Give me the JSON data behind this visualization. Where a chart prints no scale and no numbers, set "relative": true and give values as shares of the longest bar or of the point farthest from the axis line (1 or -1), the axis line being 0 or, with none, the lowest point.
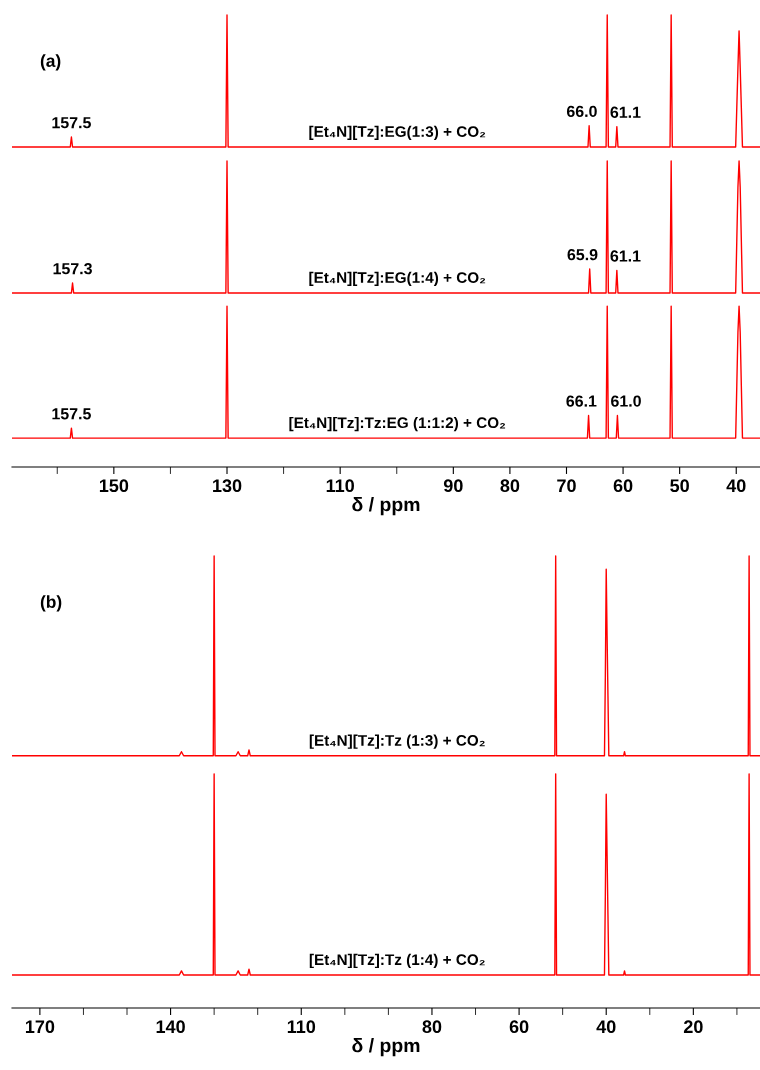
{
  "chart_data": [
    {
      "type": "line",
      "relative": true,
      "tick_labels": "x",
      "xlim": [
        168.0,
        35.8
      ],
      "xlabel": "δ / ppm",
      "xticks": [
        {
          "value": 160,
          "label": null
        },
        150,
        {
          "value": 140,
          "label": null
        },
        130,
        {
          "value": 120,
          "label": null
        },
        110,
        {
          "value": 100,
          "label": null
        },
        90,
        80,
        70,
        60,
        50,
        40
      ],
      "annotations": [
        "(a)",
        {
          "text": "157.5",
          "x": 157.5,
          "y": 0.73
        },
        {
          "text": "66.0",
          "x": 66.0,
          "y": 0.755
        },
        {
          "text": "61.1",
          "x": 61.1,
          "y": 0.753
        },
        {
          "text": "157.3",
          "x": 157.3,
          "y": 0.407
        },
        {
          "text": "65.9",
          "x": 65.9,
          "y": 0.438
        },
        {
          "text": "61.1",
          "x": 61.1,
          "y": 0.435
        },
        {
          "text": "157.5",
          "x": 157.5,
          "y": 0.086
        },
        {
          "text": "66.1",
          "x": 66.1,
          "y": 0.114
        },
        {
          "text": "61.0",
          "x": 61.0,
          "y": 0.114
        }
      ],
      "series": [
        {
          "name": "[Et₄N][Tz]:EG(1:3) + CO₂",
          "color": "#ff0000",
          "x": [
            168.0,
            157.7,
            157.5,
            157.3,
            130.2,
            130.0,
            129.8,
            66.2,
            66.0,
            65.8,
            63.0,
            62.8,
            62.6,
            61.3,
            61.1,
            60.9,
            51.7,
            51.5,
            51.3,
            40.1,
            39.9,
            39.7,
            39.5,
            39.3,
            39.1,
            38.9,
            35.8
          ],
          "values": [
            0.708,
            0.708,
            0.73,
            0.708,
            0.708,
            1.0,
            0.708,
            0.708,
            0.755,
            0.708,
            0.708,
            1.0,
            0.708,
            0.708,
            0.753,
            0.708,
            0.708,
            1.0,
            0.708,
            0.708,
            0.796,
            0.883,
            0.965,
            0.883,
            0.796,
            0.708,
            0.708
          ]
        },
        {
          "name": "[Et₄N][Tz]:EG(1:4) + CO₂",
          "color": "#ff0000",
          "x": [
            168.0,
            157.5,
            157.3,
            157.1,
            130.2,
            130.0,
            129.8,
            66.1,
            65.9,
            65.7,
            63.0,
            62.8,
            62.6,
            61.3,
            61.1,
            60.9,
            51.7,
            51.5,
            51.3,
            40.1,
            39.9,
            39.7,
            39.5,
            39.3,
            39.1,
            38.9,
            35.8
          ],
          "values": [
            0.385,
            0.385,
            0.407,
            0.385,
            0.385,
            0.677,
            0.385,
            0.385,
            0.438,
            0.385,
            0.385,
            0.677,
            0.385,
            0.385,
            0.435,
            0.385,
            0.385,
            0.677,
            0.385,
            0.385,
            0.502,
            0.619,
            0.677,
            0.619,
            0.502,
            0.385,
            0.385
          ]
        },
        {
          "name": "[Et₄N][Tz]:Tz:EG (1:1:2) + CO₂",
          "color": "#ff0000",
          "x": [
            168.0,
            157.7,
            157.5,
            157.3,
            130.2,
            130.0,
            129.8,
            66.3,
            66.1,
            65.9,
            63.0,
            62.8,
            62.6,
            61.2,
            61.0,
            60.8,
            51.7,
            51.5,
            51.3,
            40.1,
            39.9,
            39.7,
            39.5,
            39.3,
            39.1,
            38.9,
            35.8
          ],
          "values": [
            0.064,
            0.064,
            0.086,
            0.064,
            0.064,
            0.356,
            0.064,
            0.064,
            0.114,
            0.064,
            0.064,
            0.356,
            0.064,
            0.064,
            0.114,
            0.064,
            0.064,
            0.356,
            0.064,
            0.064,
            0.181,
            0.298,
            0.356,
            0.298,
            0.181,
            0.064,
            0.064
          ]
        }
      ]
    },
    {
      "type": "line",
      "relative": true,
      "tick_labels": "x",
      "xlim": [
        176.4,
        4.7
      ],
      "xlabel": "δ / ppm",
      "xticks": [
        170,
        {
          "value": 160,
          "label": null
        },
        {
          "value": 150,
          "label": null
        },
        140,
        {
          "value": 130,
          "label": null
        },
        {
          "value": 120,
          "label": null
        },
        110,
        {
          "value": 100,
          "label": null
        },
        {
          "value": 90,
          "label": null
        },
        80,
        {
          "value": 70,
          "label": null
        },
        60,
        {
          "value": 50,
          "label": null
        },
        40,
        {
          "value": 30,
          "label": null
        },
        20,
        {
          "value": 10,
          "label": null
        }
      ],
      "annotations": [
        "(b)"
      ],
      "series": [
        {
          "name": "[Et₄N][Tz]:Tz (1:3) + CO₂",
          "color": "#ff0000",
          "x": [
            176.4,
            138.0,
            137.5,
            137.0,
            130.2,
            130.0,
            129.8,
            125.0,
            124.5,
            124.0,
            122.3,
            122.0,
            121.7,
            51.8,
            51.6,
            51.4,
            40.4,
            40.2,
            40.0,
            39.8,
            39.6,
            39.4,
            36.0,
            35.8,
            35.6,
            7.4,
            7.2,
            7.0,
            4.7
          ],
          "values": [
            0.558,
            0.558,
            0.567,
            0.558,
            0.558,
            1.0,
            0.558,
            0.558,
            0.567,
            0.558,
            0.558,
            0.571,
            0.558,
            0.558,
            1.0,
            0.558,
            0.558,
            0.735,
            0.971,
            0.823,
            0.691,
            0.558,
            0.558,
            0.567,
            0.558,
            0.558,
            1.0,
            0.558,
            0.558
          ]
        },
        {
          "name": "[Et₄N][Tz]:Tz (1:4) + CO₂",
          "color": "#ff0000",
          "x": [
            176.4,
            138.0,
            137.5,
            137.0,
            130.2,
            130.0,
            129.8,
            125.0,
            124.5,
            124.0,
            122.3,
            122.0,
            121.7,
            51.8,
            51.6,
            51.4,
            40.4,
            40.2,
            40.0,
            39.8,
            39.6,
            39.4,
            36.0,
            35.8,
            35.6,
            7.4,
            7.2,
            7.0,
            4.7
          ],
          "values": [
            0.073,
            0.073,
            0.082,
            0.073,
            0.073,
            0.518,
            0.073,
            0.073,
            0.082,
            0.073,
            0.073,
            0.086,
            0.073,
            0.073,
            0.518,
            0.073,
            0.073,
            0.251,
            0.473,
            0.338,
            0.206,
            0.073,
            0.073,
            0.082,
            0.073,
            0.073,
            0.518,
            0.073,
            0.073
          ]
        }
      ]
    }
  ]
}
